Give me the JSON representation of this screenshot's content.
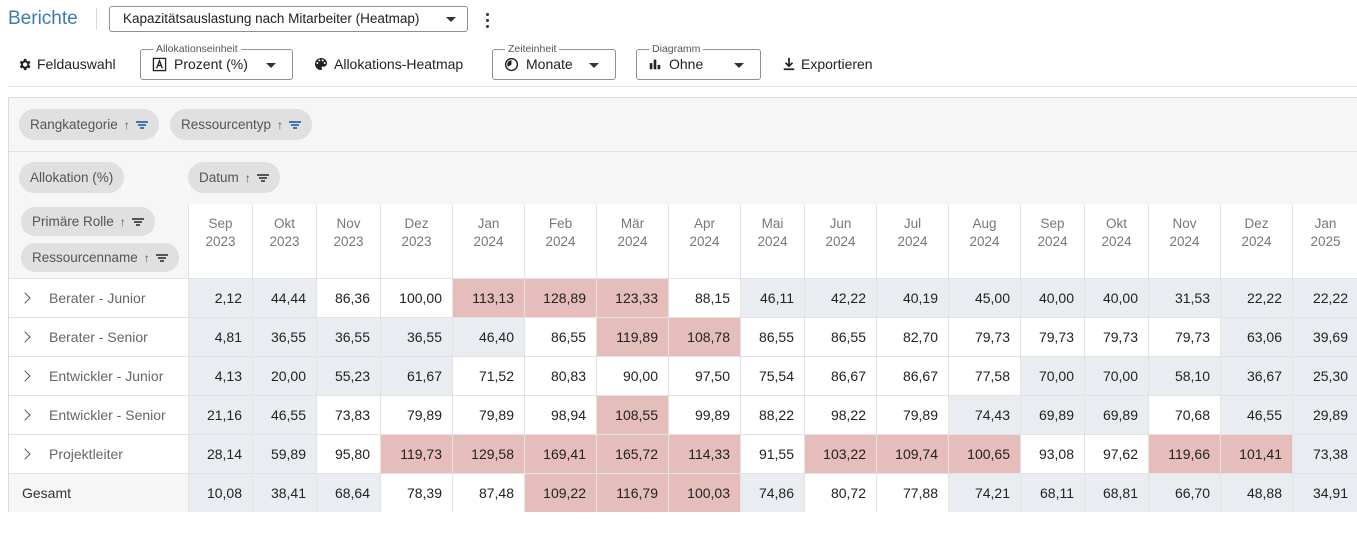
{
  "header": {
    "title": "Berichte",
    "report_select": "Kapazitätsauslastung nach Mitarbeiter (Heatmap)"
  },
  "toolbar": {
    "field_selection": "Feldauswahl",
    "allocation_unit": {
      "legend": "Allokationseinheit",
      "value": "Prozent (%)"
    },
    "heatmap": "Allokations-Heatmap",
    "time_unit": {
      "legend": "Zeiteinheit",
      "value": "Monate"
    },
    "diagram": {
      "legend": "Diagramm",
      "value": "Ohne"
    },
    "export": "Exportieren"
  },
  "filters": {
    "chips": [
      "Rangkategorie",
      "Ressourcentyp"
    ]
  },
  "pivot": {
    "value_chip": "Allokation (%)",
    "column_chip": "Datum",
    "row_chips": [
      "Primäre Rolle",
      "Ressourcenname"
    ]
  },
  "colors": {
    "high": "#e5bdbb",
    "low": "#e9ecf1",
    "normal": "#ffffff"
  },
  "table": {
    "columns": [
      {
        "m": "Sep",
        "y": "2023"
      },
      {
        "m": "Okt",
        "y": "2023"
      },
      {
        "m": "Nov",
        "y": "2023"
      },
      {
        "m": "Dez",
        "y": "2023"
      },
      {
        "m": "Jan",
        "y": "2024"
      },
      {
        "m": "Feb",
        "y": "2024"
      },
      {
        "m": "Mär",
        "y": "2024"
      },
      {
        "m": "Apr",
        "y": "2024"
      },
      {
        "m": "Mai",
        "y": "2024"
      },
      {
        "m": "Jun",
        "y": "2024"
      },
      {
        "m": "Jul",
        "y": "2024"
      },
      {
        "m": "Aug",
        "y": "2024"
      },
      {
        "m": "Sep",
        "y": "2024"
      },
      {
        "m": "Okt",
        "y": "2024"
      },
      {
        "m": "Nov",
        "y": "2024"
      },
      {
        "m": "Dez",
        "y": "2024"
      },
      {
        "m": "Jan",
        "y": "2025"
      }
    ],
    "rows": [
      {
        "label": "Berater - Junior",
        "values": [
          "2,12",
          "44,44",
          "86,36",
          "100,00",
          "113,13",
          "128,89",
          "123,33",
          "88,15",
          "46,11",
          "42,22",
          "40,19",
          "45,00",
          "40,00",
          "40,00",
          "31,53",
          "22,22",
          "22,22"
        ],
        "levels": [
          "low",
          "low",
          "normal",
          "normal",
          "high",
          "high",
          "high",
          "normal",
          "low",
          "low",
          "low",
          "low",
          "low",
          "low",
          "low",
          "low",
          "low"
        ]
      },
      {
        "label": "Berater - Senior",
        "values": [
          "4,81",
          "36,55",
          "36,55",
          "36,55",
          "46,40",
          "86,55",
          "119,89",
          "108,78",
          "86,55",
          "86,55",
          "82,70",
          "79,73",
          "79,73",
          "79,73",
          "79,73",
          "63,06",
          "39,69"
        ],
        "levels": [
          "low",
          "low",
          "low",
          "low",
          "low",
          "normal",
          "high",
          "high",
          "normal",
          "normal",
          "normal",
          "normal",
          "normal",
          "normal",
          "normal",
          "low",
          "low"
        ]
      },
      {
        "label": "Entwickler - Junior",
        "values": [
          "4,13",
          "20,00",
          "55,23",
          "61,67",
          "71,52",
          "80,83",
          "90,00",
          "97,50",
          "75,54",
          "86,67",
          "86,67",
          "77,58",
          "70,00",
          "70,00",
          "58,10",
          "36,67",
          "25,30"
        ],
        "levels": [
          "low",
          "low",
          "low",
          "low",
          "normal",
          "normal",
          "normal",
          "normal",
          "normal",
          "normal",
          "normal",
          "normal",
          "low",
          "low",
          "low",
          "low",
          "low"
        ]
      },
      {
        "label": "Entwickler - Senior",
        "values": [
          "21,16",
          "46,55",
          "73,83",
          "79,89",
          "79,89",
          "98,94",
          "108,55",
          "99,89",
          "88,22",
          "98,22",
          "79,89",
          "74,43",
          "69,89",
          "69,89",
          "70,68",
          "46,55",
          "29,89"
        ],
        "levels": [
          "low",
          "low",
          "normal",
          "normal",
          "normal",
          "normal",
          "high",
          "normal",
          "normal",
          "normal",
          "normal",
          "low",
          "low",
          "low",
          "normal",
          "low",
          "low"
        ]
      },
      {
        "label": "Projektleiter",
        "values": [
          "28,14",
          "59,89",
          "95,80",
          "119,73",
          "129,58",
          "169,41",
          "165,72",
          "114,33",
          "91,55",
          "103,22",
          "109,74",
          "100,65",
          "93,08",
          "97,62",
          "119,66",
          "101,41",
          "73,38"
        ],
        "levels": [
          "low",
          "low",
          "normal",
          "high",
          "high",
          "high",
          "high",
          "high",
          "normal",
          "high",
          "high",
          "high",
          "normal",
          "normal",
          "high",
          "high",
          "low"
        ]
      }
    ],
    "total": {
      "label": "Gesamt",
      "values": [
        "10,08",
        "38,41",
        "68,64",
        "78,39",
        "87,48",
        "109,22",
        "116,79",
        "100,03",
        "74,86",
        "80,72",
        "77,88",
        "74,21",
        "68,11",
        "68,81",
        "66,70",
        "48,88",
        "34,91"
      ],
      "levels": [
        "low",
        "low",
        "low",
        "normal",
        "normal",
        "high",
        "high",
        "high",
        "low",
        "normal",
        "normal",
        "low",
        "low",
        "low",
        "low",
        "low",
        "low"
      ]
    }
  }
}
